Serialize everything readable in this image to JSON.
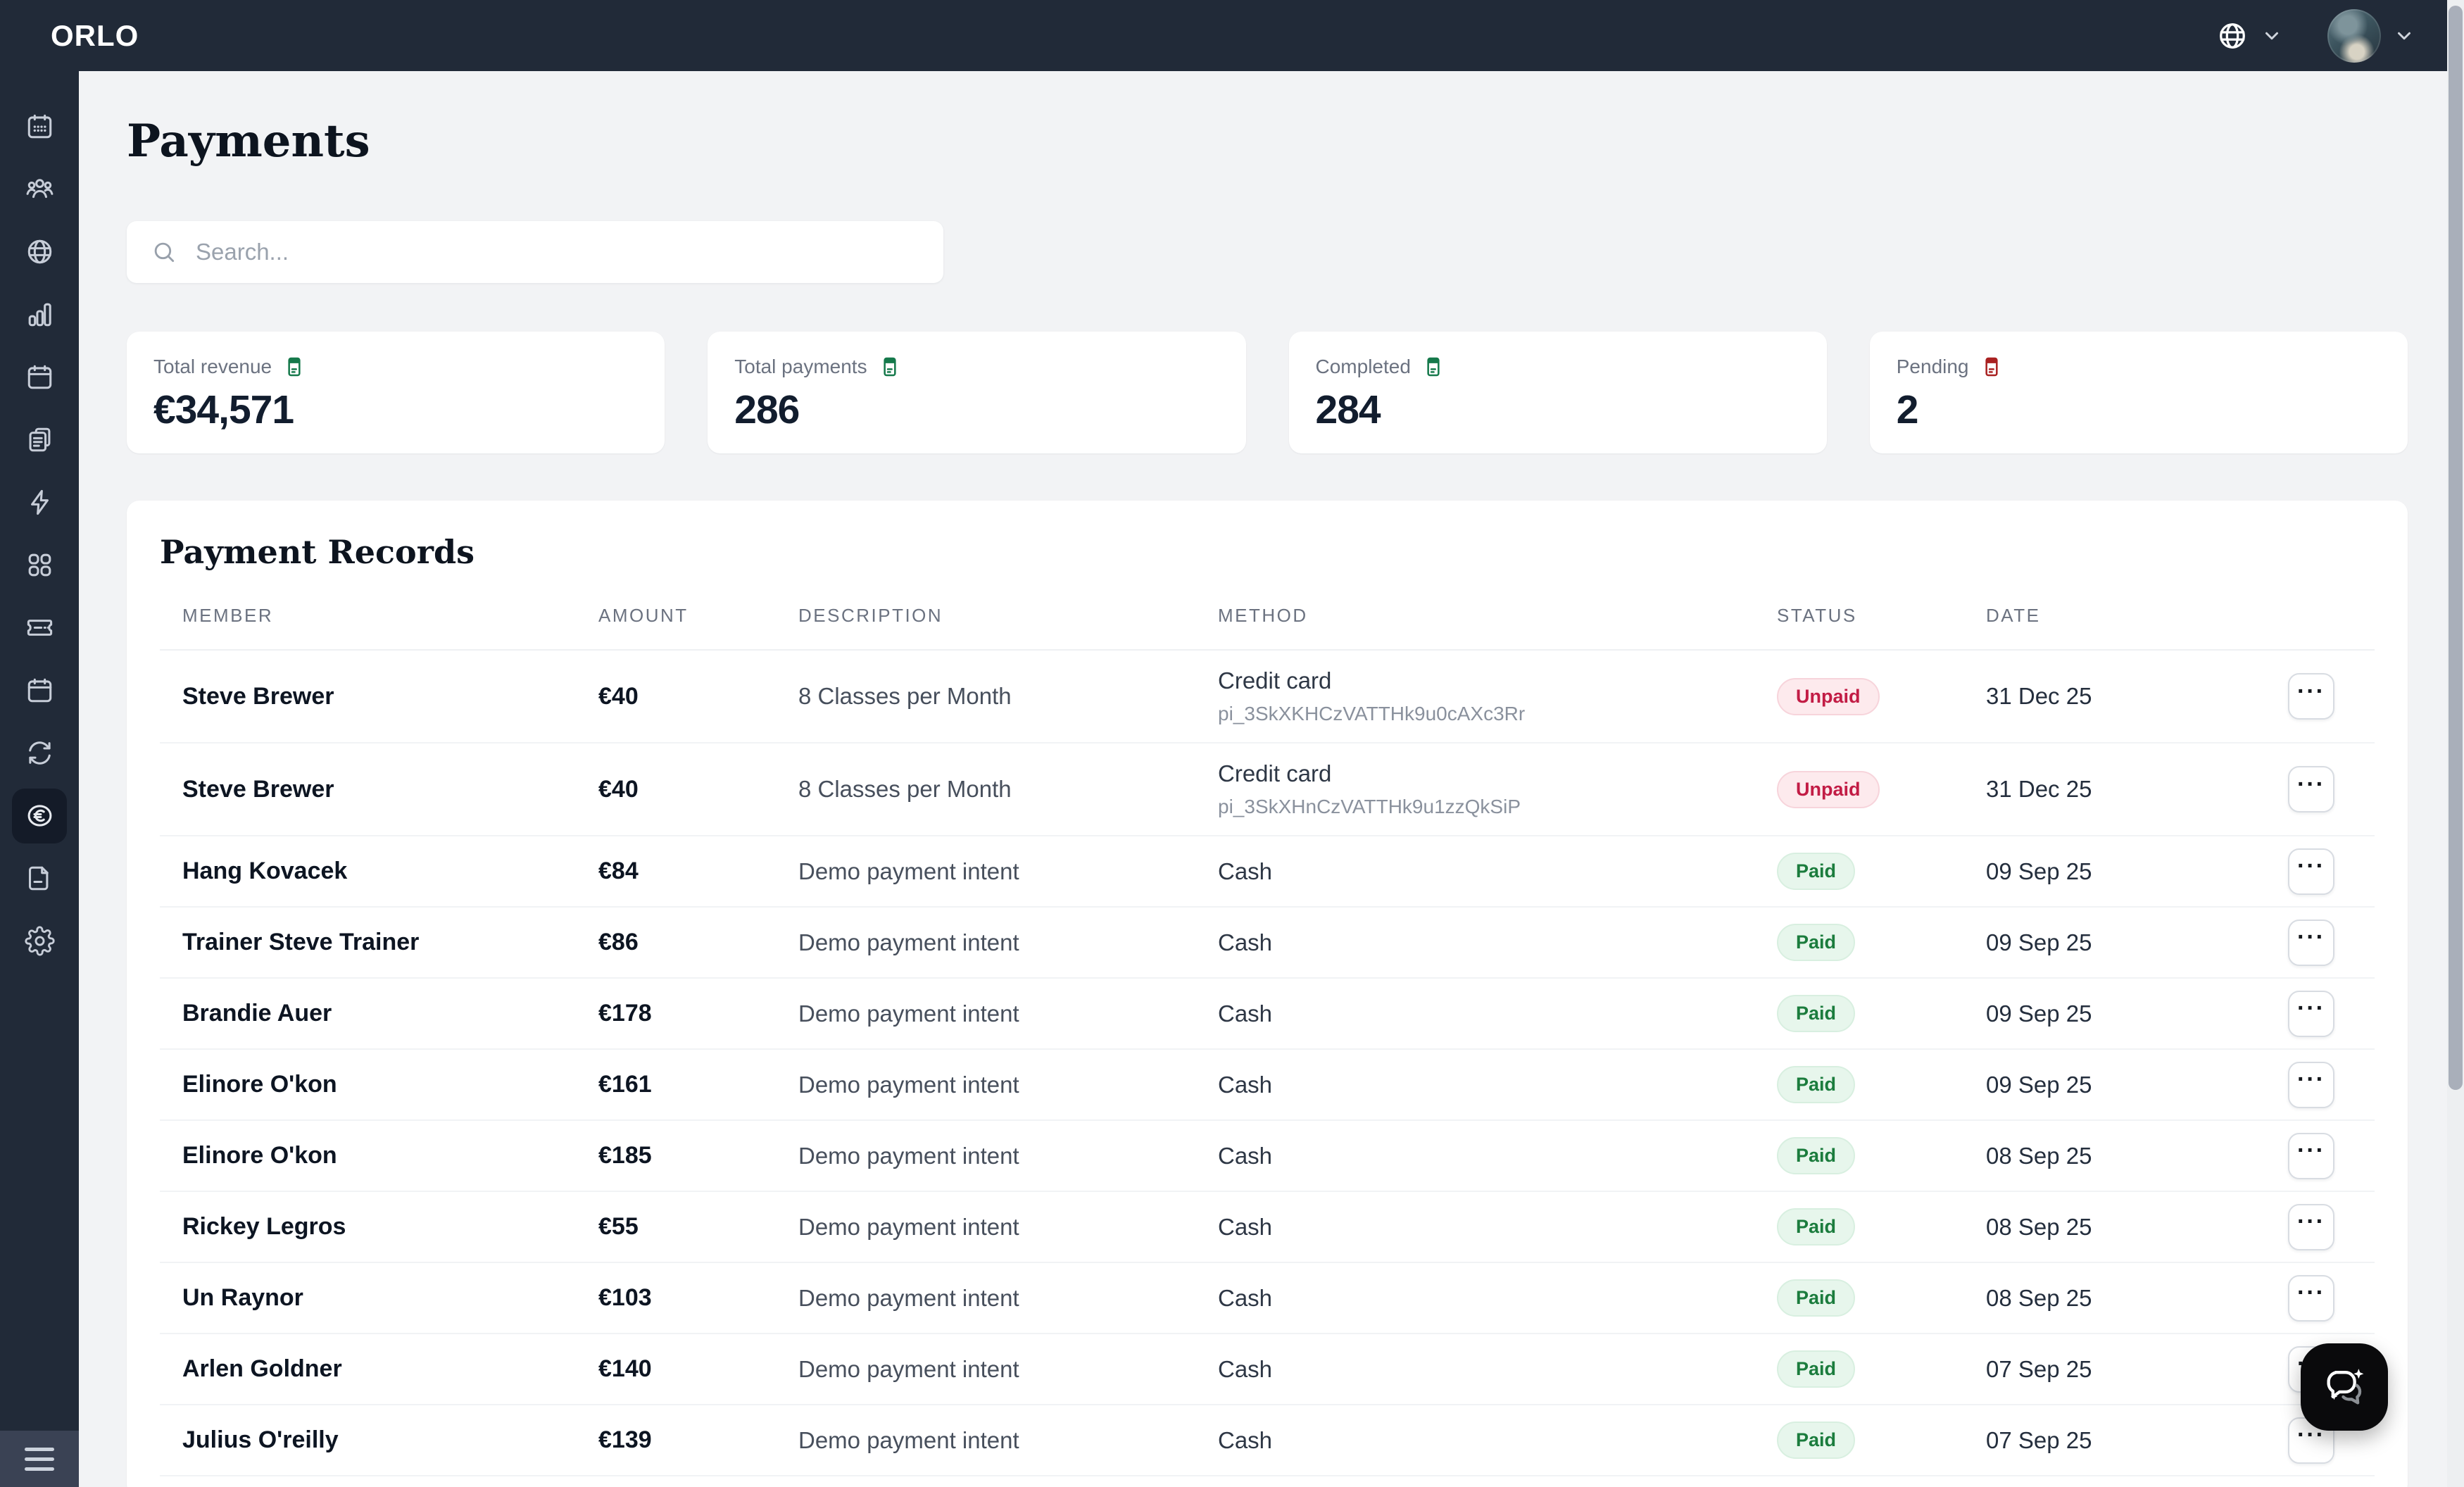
{
  "app": {
    "brand": "ORLO"
  },
  "topbar": {
    "icons": [
      "globe-icon",
      "chevron-down-icon",
      "avatar",
      "chevron-down-icon"
    ]
  },
  "sidebar": {
    "active_index": 11,
    "items": [
      {
        "icon": "calendar-dates-icon"
      },
      {
        "icon": "members-group-icon"
      },
      {
        "icon": "globe-icon"
      },
      {
        "icon": "bar-chart-icon"
      },
      {
        "icon": "calendar-icon"
      },
      {
        "icon": "clipboard-icon"
      },
      {
        "icon": "lightning-icon"
      },
      {
        "icon": "apps-grid-icon"
      },
      {
        "icon": "ticket-icon"
      },
      {
        "icon": "calendar-icon"
      },
      {
        "icon": "sync-icon"
      },
      {
        "icon": "euro-payments-icon"
      },
      {
        "icon": "document-icon"
      },
      {
        "icon": "settings-gear-icon"
      }
    ],
    "footer_icon": "hamburger-menu-icon"
  },
  "page": {
    "title": "Payments"
  },
  "search": {
    "placeholder": "Search...",
    "value": "",
    "icon": "search-icon"
  },
  "stats": [
    {
      "label": "Total revenue",
      "value": "€34,571",
      "tone": "green",
      "icon": "receipt-card-icon"
    },
    {
      "label": "Total payments",
      "value": "286",
      "tone": "green",
      "icon": "receipt-card-icon"
    },
    {
      "label": "Completed",
      "value": "284",
      "tone": "green",
      "icon": "receipt-card-icon"
    },
    {
      "label": "Pending",
      "value": "2",
      "tone": "red",
      "icon": "receipt-card-icon"
    }
  ],
  "table": {
    "title": "Payment Records",
    "columns": [
      "MEMBER",
      "AMOUNT",
      "DESCRIPTION",
      "METHOD",
      "STATUS",
      "DATE"
    ],
    "row_action_label": "···",
    "rows": [
      {
        "member": "Steve Brewer",
        "amount": "€40",
        "description": "8 Classes per Month",
        "method": "Credit card",
        "method_detail": "pi_3SkXKHCzVATTHk9u0cAXc3Rr",
        "status": "Unpaid",
        "date": "31 Dec 25"
      },
      {
        "member": "Steve Brewer",
        "amount": "€40",
        "description": "8 Classes per Month",
        "method": "Credit card",
        "method_detail": "pi_3SkXHnCzVATTHk9u1zzQkSiP",
        "status": "Unpaid",
        "date": "31 Dec 25"
      },
      {
        "member": "Hang Kovacek",
        "amount": "€84",
        "description": "Demo payment intent",
        "method": "Cash",
        "method_detail": "",
        "status": "Paid",
        "date": "09 Sep 25"
      },
      {
        "member": "Trainer Steve Trainer",
        "amount": "€86",
        "description": "Demo payment intent",
        "method": "Cash",
        "method_detail": "",
        "status": "Paid",
        "date": "09 Sep 25"
      },
      {
        "member": "Brandie Auer",
        "amount": "€178",
        "description": "Demo payment intent",
        "method": "Cash",
        "method_detail": "",
        "status": "Paid",
        "date": "09 Sep 25"
      },
      {
        "member": "Elinore O'kon",
        "amount": "€161",
        "description": "Demo payment intent",
        "method": "Cash",
        "method_detail": "",
        "status": "Paid",
        "date": "09 Sep 25"
      },
      {
        "member": "Elinore O'kon",
        "amount": "€185",
        "description": "Demo payment intent",
        "method": "Cash",
        "method_detail": "",
        "status": "Paid",
        "date": "08 Sep 25"
      },
      {
        "member": "Rickey Legros",
        "amount": "€55",
        "description": "Demo payment intent",
        "method": "Cash",
        "method_detail": "",
        "status": "Paid",
        "date": "08 Sep 25"
      },
      {
        "member": "Un Raynor",
        "amount": "€103",
        "description": "Demo payment intent",
        "method": "Cash",
        "method_detail": "",
        "status": "Paid",
        "date": "08 Sep 25"
      },
      {
        "member": "Arlen Goldner",
        "amount": "€140",
        "description": "Demo payment intent",
        "method": "Cash",
        "method_detail": "",
        "status": "Paid",
        "date": "07 Sep 25"
      },
      {
        "member": "Julius O'reilly",
        "amount": "€139",
        "description": "Demo payment intent",
        "method": "Cash",
        "method_detail": "",
        "status": "Paid",
        "date": "07 Sep 25"
      }
    ]
  },
  "chat_fab": {
    "icon": "chat-sparkle-icon"
  },
  "colors": {
    "navy": "#212a38",
    "navy_active": "#141b28",
    "page_bg": "#f2f3f5",
    "green_icon": "#15794b",
    "red_icon": "#a92121",
    "paid_bg": "#e7f6ec",
    "paid_text": "#1b7c3d",
    "unpaid_bg": "#fdeaed",
    "unpaid_text": "#c21c45",
    "fab_bg": "#0a0a0c"
  }
}
